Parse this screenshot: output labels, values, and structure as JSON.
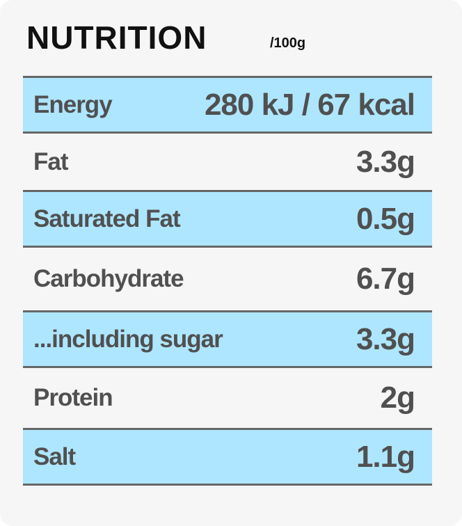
{
  "header": {
    "title": "NUTRITION",
    "unit": "/100g"
  },
  "table": {
    "rows": [
      [
        "Energy",
        "280 kJ / 67 kcal"
      ],
      [
        "Fat",
        "3.3g"
      ],
      [
        "Saturated Fat",
        "0.5g"
      ],
      [
        "Carbohydrate",
        "6.7g"
      ],
      [
        "...including sugar",
        "3.3g"
      ],
      [
        "Protein",
        "2g"
      ],
      [
        "Salt",
        "1.1g"
      ]
    ]
  }
}
